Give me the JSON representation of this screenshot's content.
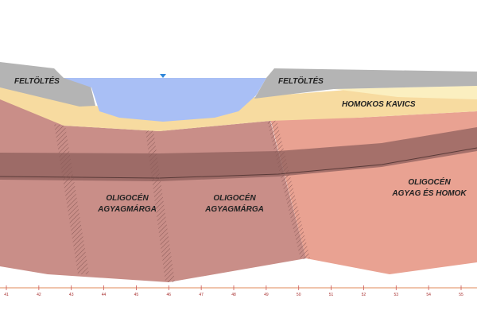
{
  "layers": {
    "fill_left": "FELTÖLTÉS",
    "fill_right": "FELTÖLTÉS",
    "gravel": "HOMOKOS KAVICS",
    "marl_1": [
      "OLIGOCÉN",
      "AGYAGMÁRGA"
    ],
    "marl_2": [
      "OLIGOCÉN",
      "AGYAGMÁRGA"
    ],
    "clay_sand": [
      "OLIGOCÉN",
      "AGYAG ÉS HOMOK"
    ]
  },
  "axis": {
    "labels": [
      "41",
      "42",
      "43",
      "44",
      "45",
      "46",
      "47",
      "48",
      "49",
      "50",
      "51",
      "52",
      "53",
      "54",
      "55"
    ]
  }
}
